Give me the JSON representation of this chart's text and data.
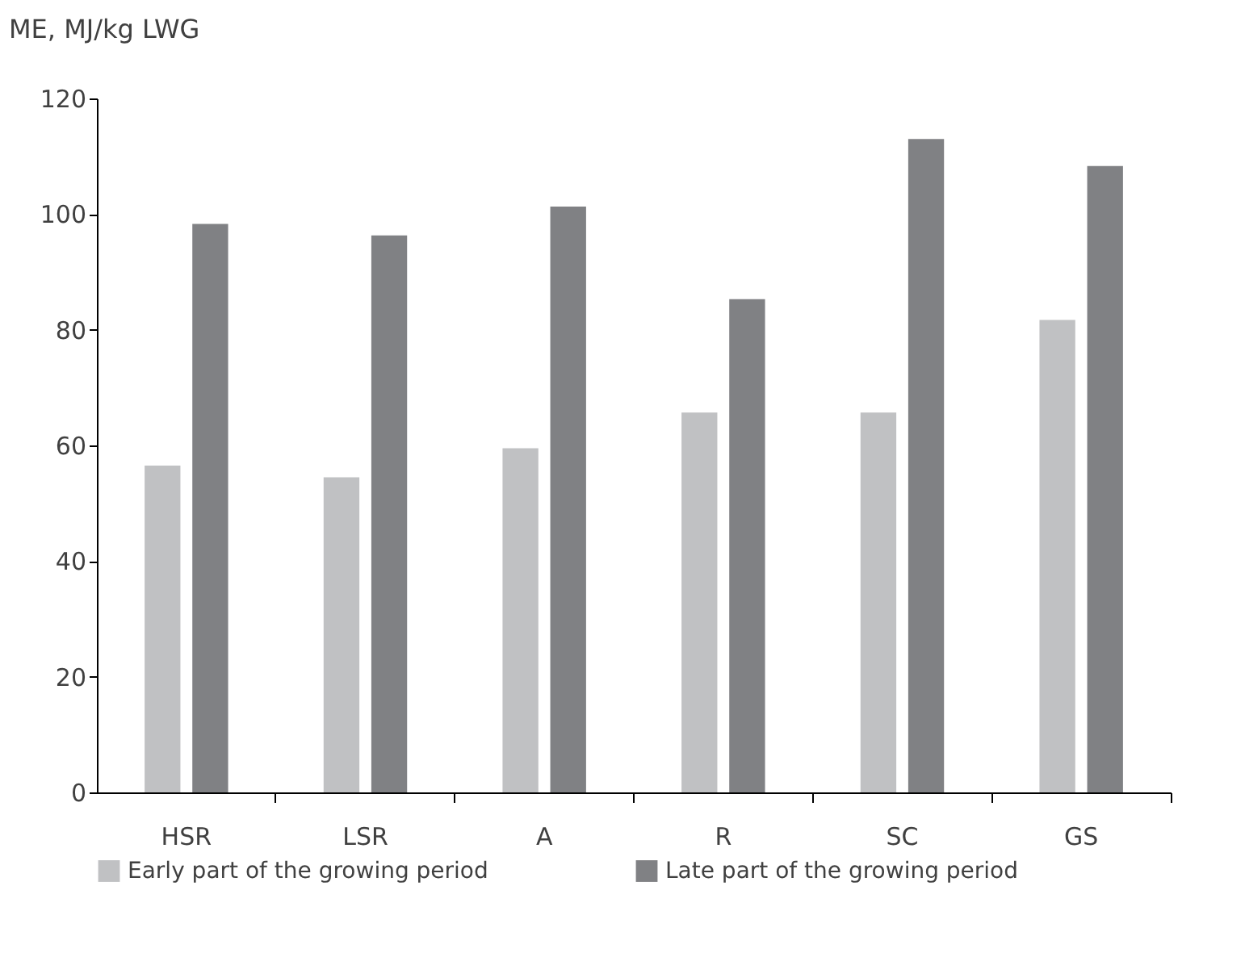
{
  "chart_data": {
    "type": "bar",
    "ylabel": "ME, MJ/kg LWG",
    "categories": [
      "HSR",
      "LSR",
      "A",
      "R",
      "SC",
      "GS"
    ],
    "series": [
      {
        "name": "Early part of the growing period",
        "color": "#c0c1c3",
        "values": [
          56.5,
          54.5,
          59.5,
          65.7,
          65.7,
          81.7
        ]
      },
      {
        "name": "Late part of the growing period",
        "color": "#808184",
        "values": [
          98.3,
          96.3,
          101.3,
          85.3,
          113,
          108.3
        ]
      }
    ],
    "ylim": [
      0,
      120
    ],
    "yticks": [
      0,
      20,
      40,
      60,
      80,
      100,
      120
    ],
    "grid": false,
    "legend": "bottom"
  }
}
